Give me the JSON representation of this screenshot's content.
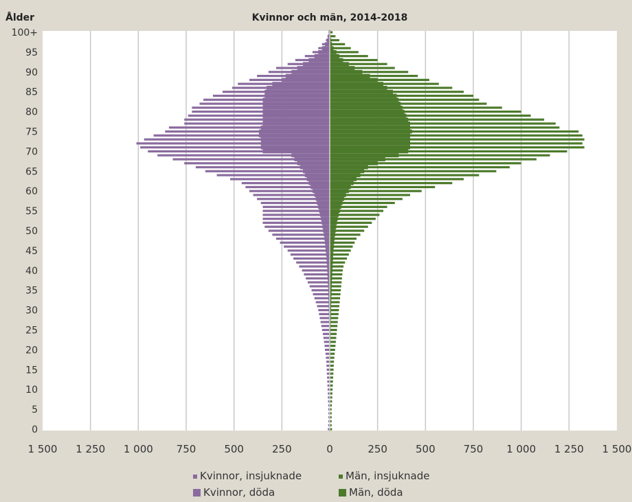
{
  "chart_data": {
    "type": "bar",
    "orientation": "horizontal-population-pyramid",
    "title": "Kvinnor och män, 2014-2018",
    "ylabel": "Ålder",
    "xlabel": "",
    "xlim": [
      -1500,
      1500
    ],
    "x_ticks": [
      "1 500",
      "1 250",
      "1 000",
      "750",
      "500",
      "250",
      "0",
      "250",
      "500",
      "750",
      "1 000",
      "1 250",
      "1 500"
    ],
    "y_ticks": [
      "0",
      "5",
      "10",
      "15",
      "20",
      "25",
      "30",
      "35",
      "40",
      "45",
      "50",
      "55",
      "60",
      "65",
      "70",
      "75",
      "80",
      "85",
      "90",
      "95",
      "100+"
    ],
    "grid": "vertical",
    "legend_position": "bottom",
    "colors": {
      "women_incidence": "#8a6b9e",
      "women_deaths": "#8a6b9e",
      "men_incidence": "#4c7a2b",
      "men_deaths": "#4c7a2b",
      "background": "#dedad0",
      "plot_background": "#ffffff",
      "gridline": "#c8c8c8"
    },
    "ages": [
      0,
      1,
      2,
      3,
      4,
      5,
      6,
      7,
      8,
      9,
      10,
      11,
      12,
      13,
      14,
      15,
      16,
      17,
      18,
      19,
      20,
      21,
      22,
      23,
      24,
      25,
      26,
      27,
      28,
      29,
      30,
      31,
      32,
      33,
      34,
      35,
      36,
      37,
      38,
      39,
      40,
      41,
      42,
      43,
      44,
      45,
      46,
      47,
      48,
      49,
      50,
      51,
      52,
      53,
      54,
      55,
      56,
      57,
      58,
      59,
      60,
      61,
      62,
      63,
      64,
      65,
      66,
      67,
      68,
      69,
      70,
      71,
      72,
      73,
      74,
      75,
      76,
      77,
      78,
      79,
      80,
      81,
      82,
      83,
      84,
      85,
      86,
      87,
      88,
      89,
      90,
      91,
      92,
      93,
      94,
      95,
      96,
      97,
      98,
      99,
      100
    ],
    "series": [
      {
        "name": "Kvinnor, insjuknade",
        "side": "left",
        "style": "thin",
        "values": [
          1,
          1,
          1,
          1,
          1,
          1,
          1,
          1,
          1,
          1,
          1,
          1,
          1,
          1,
          1,
          1,
          1,
          1,
          1,
          2,
          2,
          2,
          2,
          3,
          3,
          3,
          3,
          4,
          4,
          5,
          5,
          6,
          6,
          7,
          8,
          8,
          9,
          10,
          11,
          12,
          13,
          14,
          16,
          17,
          19,
          21,
          23,
          25,
          28,
          31,
          35,
          38,
          42,
          46,
          51,
          56,
          61,
          67,
          73,
          80,
          90,
          100,
          110,
          120,
          130,
          140,
          155,
          170,
          185,
          200,
          350,
          360,
          360,
          360,
          370,
          370,
          360,
          350,
          350,
          350,
          350,
          350,
          350,
          350,
          340,
          340,
          330,
          300,
          250,
          230,
          200,
          170,
          140,
          110,
          80,
          60,
          40,
          25,
          15,
          8,
          5
        ]
      },
      {
        "name": "Män, insjuknade",
        "side": "right",
        "style": "thin",
        "values": [
          2,
          2,
          2,
          2,
          2,
          2,
          2,
          2,
          2,
          2,
          2,
          2,
          2,
          2,
          2,
          2,
          2,
          2,
          3,
          3,
          3,
          3,
          4,
          4,
          4,
          5,
          5,
          5,
          6,
          6,
          7,
          7,
          8,
          8,
          9,
          10,
          10,
          11,
          12,
          13,
          14,
          15,
          16,
          17,
          18,
          19,
          21,
          23,
          25,
          28,
          31,
          34,
          38,
          42,
          47,
          53,
          60,
          67,
          75,
          85,
          100,
          110,
          125,
          140,
          160,
          180,
          200,
          250,
          290,
          360,
          410,
          420,
          420,
          420,
          420,
          430,
          420,
          420,
          410,
          400,
          390,
          380,
          370,
          360,
          350,
          330,
          300,
          280,
          250,
          210,
          170,
          130,
          100,
          70,
          50,
          35,
          20,
          12,
          8,
          4,
          3
        ]
      },
      {
        "name": "Kvinnor, döda",
        "side": "left",
        "style": "thick",
        "values": [
          10,
          8,
          7,
          7,
          7,
          8,
          8,
          9,
          10,
          10,
          11,
          12,
          13,
          14,
          15,
          16,
          17,
          18,
          20,
          22,
          25,
          27,
          30,
          33,
          36,
          40,
          44,
          48,
          52,
          56,
          60,
          66,
          73,
          80,
          88,
          95,
          105,
          115,
          125,
          135,
          145,
          160,
          175,
          190,
          205,
          220,
          240,
          260,
          280,
          300,
          320,
          340,
          350,
          350,
          350,
          350,
          350,
          360,
          380,
          400,
          420,
          440,
          460,
          520,
          590,
          650,
          700,
          760,
          820,
          900,
          950,
          990,
          1010,
          970,
          920,
          860,
          840,
          760,
          760,
          740,
          720,
          720,
          680,
          660,
          610,
          560,
          510,
          480,
          420,
          380,
          320,
          280,
          220,
          180,
          130,
          90,
          60,
          40,
          20,
          12,
          6
        ]
      },
      {
        "name": "Män, döda",
        "side": "right",
        "style": "thick",
        "values": [
          12,
          10,
          10,
          10,
          10,
          10,
          11,
          12,
          13,
          14,
          15,
          16,
          17,
          18,
          19,
          20,
          21,
          22,
          24,
          26,
          28,
          30,
          32,
          34,
          36,
          38,
          40,
          42,
          44,
          46,
          48,
          50,
          52,
          54,
          56,
          58,
          60,
          62,
          64,
          66,
          68,
          72,
          80,
          90,
          100,
          110,
          120,
          130,
          140,
          160,
          180,
          200,
          220,
          240,
          260,
          280,
          300,
          340,
          380,
          420,
          480,
          550,
          640,
          700,
          780,
          870,
          940,
          1000,
          1080,
          1150,
          1240,
          1330,
          1320,
          1330,
          1320,
          1300,
          1200,
          1180,
          1120,
          1050,
          1000,
          900,
          820,
          780,
          750,
          700,
          640,
          570,
          520,
          460,
          410,
          340,
          300,
          250,
          200,
          150,
          110,
          80,
          50,
          30,
          15
        ]
      }
    ],
    "legend": [
      {
        "label": "Kvinnor, insjuknade",
        "color": "#8a6b9e",
        "marker": "small"
      },
      {
        "label": "Män, insjuknade",
        "color": "#4c7a2b",
        "marker": "small"
      },
      {
        "label": "Kvinnor, döda",
        "color": "#8a6b9e",
        "marker": "big"
      },
      {
        "label": "Män, döda",
        "color": "#4c7a2b",
        "marker": "big"
      }
    ]
  }
}
